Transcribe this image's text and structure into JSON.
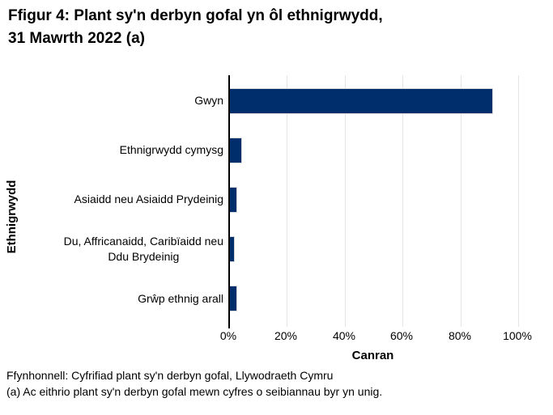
{
  "title": "Ffigur 4: Plant sy'n derbyn gofal yn ôl ethnigrwydd, 31 Mawrth 2022 (a)",
  "title_lines": [
    "Ffigur 4: Plant sy'n derbyn gofal yn ôl ethnigrwydd,",
    "31 Mawrth 2022 (a)"
  ],
  "chart_data": {
    "type": "bar",
    "orientation": "horizontal",
    "title": "Ffigur 4: Plant sy'n derbyn gofal yn ôl ethnigrwydd, 31 Mawrth 2022 (a)",
    "categories": [
      "Gwyn",
      "Ethnigrwydd cymysg",
      "Asiaidd neu Asiaidd Prydeinig",
      "Du, Affricanaidd, Caribïaidd neu\nDdu Brydeinig",
      "Grŵp ethnig arall"
    ],
    "values": [
      90.8,
      3.9,
      2.2,
      1.5,
      2.2
    ],
    "xlabel": "Canran",
    "ylabel": "Ethnigrwydd",
    "xlim": [
      0,
      100
    ],
    "ticks": [
      {
        "value": 0,
        "label": "0%"
      },
      {
        "value": 20,
        "label": "20%"
      },
      {
        "value": 40,
        "label": "40%"
      },
      {
        "value": 60,
        "label": "60%"
      },
      {
        "value": 80,
        "label": "80%"
      },
      {
        "value": 100,
        "label": "100%"
      }
    ],
    "grid": true,
    "legend": false,
    "bar_color": "#002d6c",
    "bar_border_color": "#d9d9d9",
    "gridline_color": "#e4e4e4",
    "axis_color": "#000000"
  },
  "footnotes": {
    "source": "Ffynhonnell: Cyfrifiad plant sy'n derbyn gofal, Llywodraeth Cymru",
    "note_a": "(a) Ac eithrio plant sy'n derbyn gofal mewn cyfres o seibiannau byr yn unig."
  }
}
